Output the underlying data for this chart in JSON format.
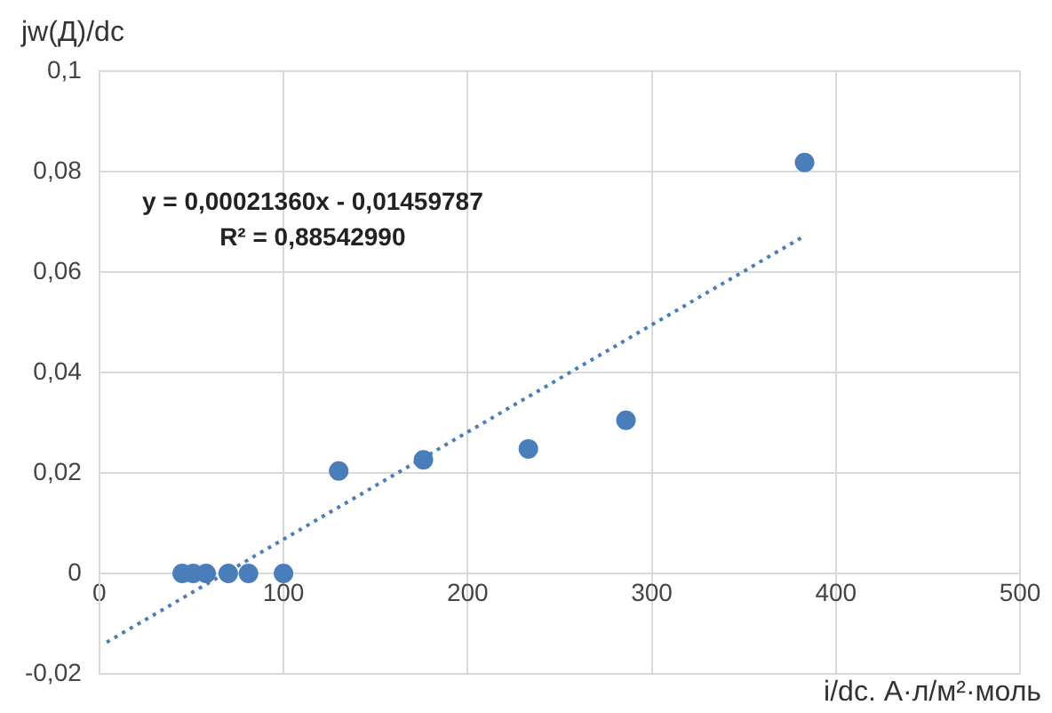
{
  "chart_data": {
    "type": "scatter",
    "ylabel": "jw(Д)/dc",
    "xlabel": "i/dc. А·л/м²·моль",
    "annotations": [
      "y = 0,00021360x - 0,01459787",
      "R² = 0,88542990"
    ],
    "series": [
      {
        "type": "scatter",
        "color": "#4a7ebb",
        "marker": "circle",
        "x": [
          45,
          51,
          58,
          70,
          81,
          100,
          130,
          176,
          233,
          286,
          383
        ],
        "values": [
          0,
          0,
          0,
          0,
          0,
          0,
          0.0204,
          0.0226,
          0.0248,
          0.0305,
          0.0818
        ]
      },
      {
        "type": "line",
        "color": "#4a7ebb",
        "marker": "none",
        "line_style": "dotted",
        "x": [
          4,
          383
        ],
        "values": [
          -0.0137,
          0.0672
        ]
      }
    ],
    "xlim": [
      0,
      500
    ],
    "xticks": [
      0,
      100,
      200,
      300,
      400,
      500
    ],
    "ylim": [
      -0.02,
      0.1
    ],
    "yticks": [
      {
        "value": -0.02,
        "label": "-0,02"
      },
      0,
      {
        "value": 0.02,
        "label": "0,02"
      },
      {
        "value": 0.04,
        "label": "0,04"
      },
      {
        "value": 0.06,
        "label": "0,06"
      },
      {
        "value": 0.08,
        "label": "0,08"
      },
      {
        "value": 0.1,
        "label": "0,1"
      }
    ],
    "grid": true,
    "legend": false
  }
}
